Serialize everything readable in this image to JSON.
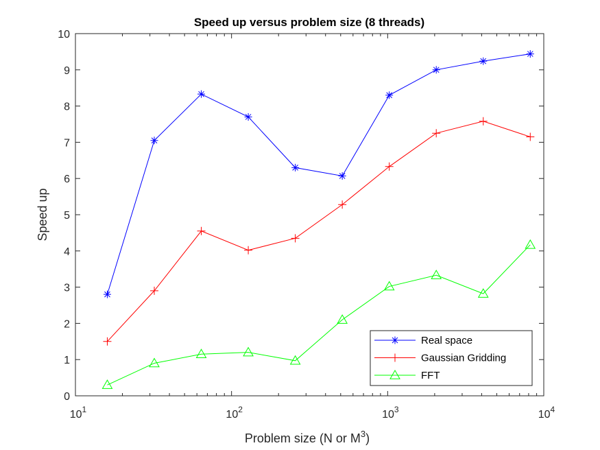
{
  "chart_data": {
    "type": "line",
    "title": "Speed up versus problem size (8 threads)",
    "xlabel_prefix": "Problem size (N or M",
    "xlabel_sup": "3",
    "xlabel_suffix": ")",
    "ylabel": "Speed up",
    "xscale": "log",
    "xlim": [
      10,
      10000
    ],
    "ylim": [
      0,
      10
    ],
    "grid": false,
    "legend_position": "bottom-right",
    "x": [
      16,
      32,
      64,
      128,
      256,
      512,
      1024,
      2048,
      4096,
      8192
    ],
    "series": [
      {
        "name": "Real space",
        "color": "#0000ff",
        "marker": "asterisk",
        "values": [
          2.8,
          7.05,
          8.33,
          7.7,
          6.3,
          6.07,
          8.3,
          9.0,
          9.24,
          9.44
        ]
      },
      {
        "name": "Gaussian Gridding",
        "color": "#ff0000",
        "marker": "plus",
        "values": [
          1.5,
          2.9,
          4.55,
          4.02,
          4.35,
          5.28,
          6.33,
          7.25,
          7.58,
          7.15
        ]
      },
      {
        "name": "FFT",
        "color": "#00ff00",
        "marker": "triangle",
        "values": [
          0.3,
          0.9,
          1.15,
          1.2,
          0.97,
          2.1,
          3.02,
          3.33,
          2.82,
          4.17
        ]
      }
    ],
    "yticks": [
      "0",
      "1",
      "2",
      "3",
      "4",
      "5",
      "6",
      "7",
      "8",
      "9",
      "10"
    ],
    "xticks": [
      {
        "value": 10,
        "base": "10",
        "exp": "1"
      },
      {
        "value": 100,
        "base": "10",
        "exp": "2"
      },
      {
        "value": 1000,
        "base": "10",
        "exp": "3"
      },
      {
        "value": 10000,
        "base": "10",
        "exp": "4"
      }
    ]
  }
}
